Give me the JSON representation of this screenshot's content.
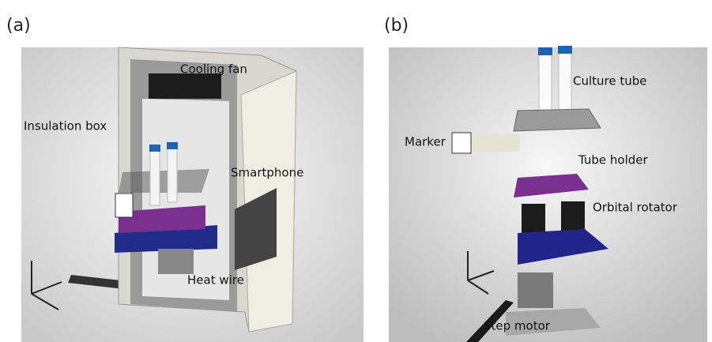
{
  "panels": [
    {
      "label": "(a)",
      "annotations": [
        "Cooling fan",
        "Insulation box",
        "Smartphone",
        "Heat wire"
      ]
    },
    {
      "label": "(b)",
      "annotations": [
        "Culture tube",
        "Marker",
        "Tube holder",
        "Orbital rotator",
        "Step motor"
      ]
    }
  ]
}
